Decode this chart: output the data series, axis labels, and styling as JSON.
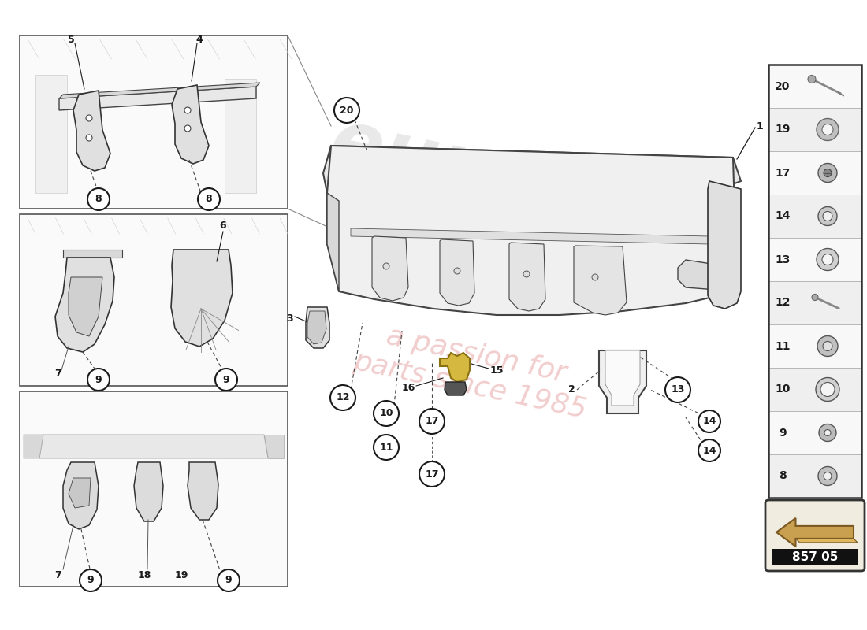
{
  "bg_color": "#ffffff",
  "line_color": "#1a1a1a",
  "gray_line": "#888888",
  "light_gray": "#cccccc",
  "part_fill": "#f5f5f5",
  "highlight_yellow": "#d4b840",
  "highlight_dark": "#8a7010",
  "watermark1_color": "#c8c8c8",
  "watermark2_color": "#e8a0a0",
  "table_row_colors": [
    "#f0f0f0",
    "#e8e8e8"
  ],
  "page_number": "857 05",
  "row_items": [
    20,
    19,
    17,
    14,
    13,
    12,
    11,
    10,
    9,
    8
  ]
}
